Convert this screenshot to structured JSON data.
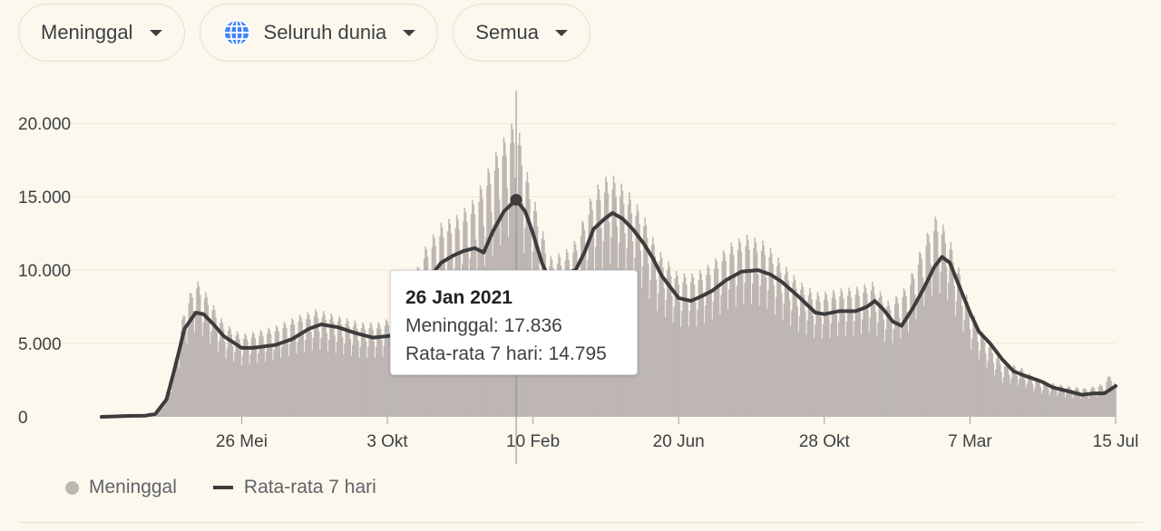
{
  "filters": {
    "metric": "Meninggal",
    "region": "Seluruh dunia",
    "period": "Semua"
  },
  "icons": {
    "region": "globe-icon",
    "dropdown": "caret-down-icon"
  },
  "colors": {
    "background": "#fdf8ed",
    "bars": "#bdb6b3",
    "line": "#3c3c3c",
    "globe": "#4285f4"
  },
  "tooltip": {
    "date": "26 Jan 2021",
    "daily_label": "Meninggal:",
    "daily_value": "17.836",
    "avg_label": "Rata-rata 7 hari:",
    "avg_value": "14.795"
  },
  "legend": {
    "daily": "Meninggal",
    "average": "Rata-rata 7 hari"
  },
  "chart_data": {
    "type": "bar",
    "title": "",
    "xlabel": "",
    "ylabel": "",
    "x_range": [
      "2020-01-22",
      "2022-07-15"
    ],
    "ylim": [
      0,
      21000
    ],
    "y_ticks": [
      0,
      5000,
      10000,
      15000,
      20000
    ],
    "y_tick_labels": [
      "0",
      "5.000",
      "10.000",
      "15.000",
      "20.000"
    ],
    "x_ticks": [
      "2020-05-26",
      "2020-10-03",
      "2021-02-10",
      "2021-06-20",
      "2021-10-28",
      "2022-03-07",
      "2022-07-15"
    ],
    "x_tick_labels": [
      "26 Mei",
      "3 Okt",
      "10 Feb",
      "20 Jun",
      "28 Okt",
      "7 Mar",
      "15 Jul"
    ],
    "grid": true,
    "legend_position": "bottom-left",
    "highlight": {
      "date": "2021-01-26",
      "daily": 17836,
      "avg": 14795
    },
    "series": [
      {
        "name": "Meninggal",
        "type": "bar",
        "points": [
          [
            "2020-01-22",
            0
          ],
          [
            "2020-02-15",
            60
          ],
          [
            "2020-03-01",
            80
          ],
          [
            "2020-03-15",
            500
          ],
          [
            "2020-03-25",
            2500
          ],
          [
            "2020-04-05",
            6500
          ],
          [
            "2020-04-15",
            8200
          ],
          [
            "2020-04-25",
            7300
          ],
          [
            "2020-05-10",
            5600
          ],
          [
            "2020-05-26",
            4900
          ],
          [
            "2020-06-10",
            5100
          ],
          [
            "2020-06-25",
            5400
          ],
          [
            "2020-07-15",
            6000
          ],
          [
            "2020-08-01",
            6400
          ],
          [
            "2020-08-20",
            6000
          ],
          [
            "2020-09-10",
            5600
          ],
          [
            "2020-09-25",
            5600
          ],
          [
            "2020-10-03",
            5800
          ],
          [
            "2020-10-20",
            7000
          ],
          [
            "2020-11-05",
            10000
          ],
          [
            "2020-11-20",
            11500
          ],
          [
            "2020-12-05",
            12000
          ],
          [
            "2020-12-20",
            13000
          ],
          [
            "2021-01-10",
            16000
          ],
          [
            "2021-01-26",
            17836
          ],
          [
            "2021-02-05",
            14500
          ],
          [
            "2021-02-15",
            12000
          ],
          [
            "2021-02-25",
            9500
          ],
          [
            "2021-03-10",
            9800
          ],
          [
            "2021-03-20",
            10500
          ],
          [
            "2021-04-05",
            13500
          ],
          [
            "2021-04-20",
            14500
          ],
          [
            "2021-05-05",
            13500
          ],
          [
            "2021-05-20",
            12000
          ],
          [
            "2021-06-01",
            10000
          ],
          [
            "2021-06-20",
            8500
          ],
          [
            "2021-07-05",
            8500
          ],
          [
            "2021-07-20",
            9200
          ],
          [
            "2021-08-05",
            10300
          ],
          [
            "2021-08-20",
            10800
          ],
          [
            "2021-09-05",
            10400
          ],
          [
            "2021-09-20",
            9200
          ],
          [
            "2021-10-05",
            8100
          ],
          [
            "2021-10-20",
            7400
          ],
          [
            "2021-10-28",
            7400
          ],
          [
            "2021-11-10",
            7600
          ],
          [
            "2021-11-25",
            7700
          ],
          [
            "2021-12-10",
            8000
          ],
          [
            "2021-12-25",
            6800
          ],
          [
            "2022-01-10",
            7800
          ],
          [
            "2022-01-25",
            10500
          ],
          [
            "2022-02-05",
            12000
          ],
          [
            "2022-02-15",
            11000
          ],
          [
            "2022-03-01",
            8000
          ],
          [
            "2022-03-07",
            6500
          ],
          [
            "2022-03-20",
            4800
          ],
          [
            "2022-04-05",
            3200
          ],
          [
            "2022-04-20",
            3000
          ],
          [
            "2022-05-05",
            2300
          ],
          [
            "2022-05-20",
            2000
          ],
          [
            "2022-06-05",
            1800
          ],
          [
            "2022-06-20",
            1700
          ],
          [
            "2022-07-05",
            2000
          ],
          [
            "2022-07-12",
            2800
          ],
          [
            "2022-07-15",
            1800
          ]
        ]
      },
      {
        "name": "Rata-rata 7 hari",
        "type": "line",
        "points": [
          [
            "2020-01-22",
            0
          ],
          [
            "2020-02-15",
            60
          ],
          [
            "2020-03-01",
            80
          ],
          [
            "2020-03-10",
            200
          ],
          [
            "2020-03-20",
            1200
          ],
          [
            "2020-03-28",
            3500
          ],
          [
            "2020-04-05",
            6000
          ],
          [
            "2020-04-15",
            7100
          ],
          [
            "2020-04-22",
            7000
          ],
          [
            "2020-05-01",
            6300
          ],
          [
            "2020-05-10",
            5500
          ],
          [
            "2020-05-26",
            4700
          ],
          [
            "2020-06-05",
            4700
          ],
          [
            "2020-06-15",
            4800
          ],
          [
            "2020-06-25",
            4900
          ],
          [
            "2020-07-10",
            5300
          ],
          [
            "2020-07-25",
            6000
          ],
          [
            "2020-08-05",
            6300
          ],
          [
            "2020-08-20",
            6100
          ],
          [
            "2020-09-05",
            5700
          ],
          [
            "2020-09-20",
            5400
          ],
          [
            "2020-10-03",
            5500
          ],
          [
            "2020-10-10",
            5600
          ],
          [
            "2020-10-25",
            6500
          ],
          [
            "2020-11-10",
            9500
          ],
          [
            "2020-11-20",
            10500
          ],
          [
            "2020-12-01",
            11000
          ],
          [
            "2020-12-10",
            11300
          ],
          [
            "2020-12-20",
            11500
          ],
          [
            "2020-12-28",
            11200
          ],
          [
            "2021-01-05",
            12600
          ],
          [
            "2021-01-15",
            14000
          ],
          [
            "2021-01-26",
            14795
          ],
          [
            "2021-02-03",
            14000
          ],
          [
            "2021-02-10",
            12500
          ],
          [
            "2021-02-18",
            10500
          ],
          [
            "2021-02-25",
            9300
          ],
          [
            "2021-03-05",
            9000
          ],
          [
            "2021-03-12",
            9800
          ],
          [
            "2021-03-20",
            10000
          ],
          [
            "2021-03-28",
            11200
          ],
          [
            "2021-04-05",
            12800
          ],
          [
            "2021-04-15",
            13500
          ],
          [
            "2021-04-22",
            13900
          ],
          [
            "2021-05-01",
            13500
          ],
          [
            "2021-05-10",
            12800
          ],
          [
            "2021-05-20",
            11800
          ],
          [
            "2021-05-28",
            10800
          ],
          [
            "2021-06-05",
            9600
          ],
          [
            "2021-06-12",
            8900
          ],
          [
            "2021-06-20",
            8100
          ],
          [
            "2021-07-01",
            7900
          ],
          [
            "2021-07-10",
            8200
          ],
          [
            "2021-07-20",
            8600
          ],
          [
            "2021-08-01",
            9300
          ],
          [
            "2021-08-15",
            9900
          ],
          [
            "2021-08-30",
            10000
          ],
          [
            "2021-09-10",
            9700
          ],
          [
            "2021-09-20",
            9200
          ],
          [
            "2021-10-05",
            8200
          ],
          [
            "2021-10-20",
            7100
          ],
          [
            "2021-10-28",
            7000
          ],
          [
            "2021-11-10",
            7200
          ],
          [
            "2021-11-25",
            7200
          ],
          [
            "2021-12-05",
            7500
          ],
          [
            "2021-12-12",
            7900
          ],
          [
            "2021-12-20",
            7300
          ],
          [
            "2021-12-28",
            6500
          ],
          [
            "2022-01-05",
            6200
          ],
          [
            "2022-01-15",
            7400
          ],
          [
            "2022-01-25",
            8800
          ],
          [
            "2022-02-03",
            10200
          ],
          [
            "2022-02-10",
            10900
          ],
          [
            "2022-02-17",
            10500
          ],
          [
            "2022-02-25",
            9000
          ],
          [
            "2022-03-07",
            7100
          ],
          [
            "2022-03-15",
            5800
          ],
          [
            "2022-03-25",
            5000
          ],
          [
            "2022-04-05",
            3900
          ],
          [
            "2022-04-15",
            3100
          ],
          [
            "2022-04-25",
            2800
          ],
          [
            "2022-05-10",
            2400
          ],
          [
            "2022-05-20",
            2000
          ],
          [
            "2022-06-05",
            1700
          ],
          [
            "2022-06-15",
            1500
          ],
          [
            "2022-06-25",
            1600
          ],
          [
            "2022-07-05",
            1600
          ],
          [
            "2022-07-15",
            2100
          ]
        ]
      }
    ]
  }
}
